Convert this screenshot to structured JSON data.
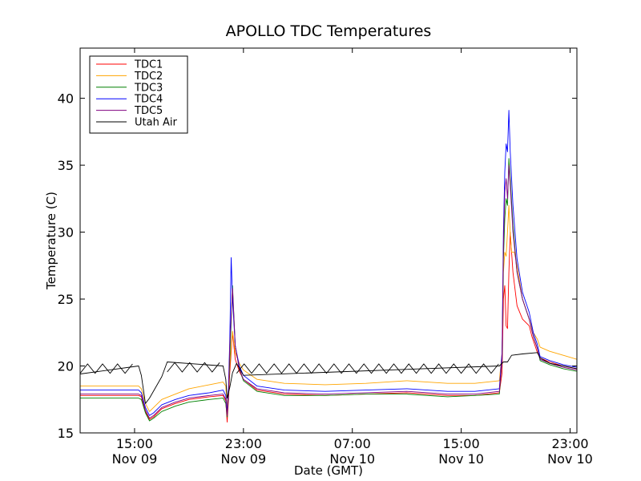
{
  "chart_data": {
    "type": "line",
    "title": "APOLLO TDC Temperatures",
    "xlabel": "Date (GMT)",
    "ylabel": "Temperature (C)",
    "xlim": [
      11.0,
      47.5
    ],
    "ylim": [
      15,
      43.75
    ],
    "x_unit": "hours since 00:00 Nov 09 (GMT)",
    "xticks": [
      {
        "value": 15,
        "line1": "15:00",
        "line2": "Nov 09"
      },
      {
        "value": 23,
        "line1": "23:00",
        "line2": "Nov 09"
      },
      {
        "value": 31,
        "line1": "07:00",
        "line2": "Nov 10"
      },
      {
        "value": 39,
        "line1": "15:00",
        "line2": "Nov 10"
      },
      {
        "value": 47,
        "line1": "23:00",
        "line2": "Nov 10"
      }
    ],
    "yticks": [
      15,
      20,
      25,
      30,
      35,
      40
    ],
    "legend_position": "top-left",
    "series": [
      {
        "name": "TDC1",
        "color": "#ff0000",
        "points": [
          [
            11.0,
            17.8
          ],
          [
            15.3,
            17.8
          ],
          [
            15.5,
            17.7
          ],
          [
            15.8,
            16.6
          ],
          [
            16.1,
            16.0
          ],
          [
            16.4,
            16.2
          ],
          [
            17.0,
            16.8
          ],
          [
            18.0,
            17.2
          ],
          [
            19.0,
            17.5
          ],
          [
            20.5,
            17.7
          ],
          [
            21.5,
            17.8
          ],
          [
            21.7,
            17.4
          ],
          [
            21.8,
            15.8
          ],
          [
            21.9,
            17.5
          ],
          [
            22.0,
            19.5
          ],
          [
            22.2,
            22.5
          ],
          [
            22.4,
            20.5
          ],
          [
            22.7,
            19.6
          ],
          [
            23.0,
            19.0
          ],
          [
            24.0,
            18.2
          ],
          [
            26.0,
            17.9
          ],
          [
            29.0,
            17.8
          ],
          [
            32.0,
            17.9
          ],
          [
            35.0,
            18.0
          ],
          [
            38.0,
            17.8
          ],
          [
            40.0,
            17.8
          ],
          [
            41.8,
            18.0
          ],
          [
            42.0,
            19.5
          ],
          [
            42.1,
            25.0
          ],
          [
            42.2,
            26.0
          ],
          [
            42.3,
            23.0
          ],
          [
            42.4,
            22.8
          ],
          [
            42.5,
            27.0
          ],
          [
            42.6,
            30.0
          ],
          [
            42.8,
            27.0
          ],
          [
            43.1,
            24.5
          ],
          [
            43.5,
            23.5
          ],
          [
            44.0,
            23.0
          ],
          [
            44.2,
            22.2
          ],
          [
            44.6,
            21.0
          ],
          [
            44.8,
            20.6
          ],
          [
            45.5,
            20.3
          ],
          [
            46.5,
            20.0
          ],
          [
            47.5,
            19.8
          ]
        ]
      },
      {
        "name": "TDC2",
        "color": "#ffa500",
        "points": [
          [
            11.0,
            18.5
          ],
          [
            15.3,
            18.5
          ],
          [
            15.5,
            18.3
          ],
          [
            15.8,
            17.2
          ],
          [
            16.1,
            16.6
          ],
          [
            16.4,
            16.9
          ],
          [
            17.0,
            17.5
          ],
          [
            18.0,
            17.9
          ],
          [
            19.0,
            18.3
          ],
          [
            20.5,
            18.6
          ],
          [
            21.5,
            18.8
          ],
          [
            21.7,
            18.5
          ],
          [
            21.8,
            16.8
          ],
          [
            21.9,
            18.2
          ],
          [
            22.0,
            20.0
          ],
          [
            22.2,
            22.6
          ],
          [
            22.4,
            21.0
          ],
          [
            22.7,
            20.2
          ],
          [
            23.0,
            19.7
          ],
          [
            24.0,
            19.0
          ],
          [
            26.0,
            18.7
          ],
          [
            29.0,
            18.6
          ],
          [
            32.0,
            18.7
          ],
          [
            35.0,
            18.9
          ],
          [
            38.0,
            18.7
          ],
          [
            40.0,
            18.7
          ],
          [
            41.8,
            18.9
          ],
          [
            42.0,
            21.0
          ],
          [
            42.1,
            27.0
          ],
          [
            42.2,
            28.5
          ],
          [
            42.3,
            28.2
          ],
          [
            42.4,
            30.0
          ],
          [
            42.5,
            32.0
          ],
          [
            42.6,
            30.0
          ],
          [
            42.7,
            28.5
          ],
          [
            42.9,
            28.5
          ],
          [
            43.1,
            27.5
          ],
          [
            43.5,
            25.0
          ],
          [
            44.0,
            23.5
          ],
          [
            44.3,
            22.5
          ],
          [
            44.6,
            22.0
          ],
          [
            44.8,
            21.4
          ],
          [
            45.5,
            21.1
          ],
          [
            46.5,
            20.8
          ],
          [
            47.5,
            20.5
          ]
        ]
      },
      {
        "name": "TDC3",
        "color": "#008000",
        "points": [
          [
            11.0,
            17.6
          ],
          [
            15.3,
            17.6
          ],
          [
            15.5,
            17.5
          ],
          [
            15.8,
            16.5
          ],
          [
            16.1,
            15.9
          ],
          [
            16.4,
            16.1
          ],
          [
            17.0,
            16.6
          ],
          [
            18.0,
            17.0
          ],
          [
            19.0,
            17.3
          ],
          [
            20.5,
            17.5
          ],
          [
            21.5,
            17.6
          ],
          [
            21.7,
            17.2
          ],
          [
            21.8,
            16.2
          ],
          [
            21.9,
            17.8
          ],
          [
            22.0,
            20.5
          ],
          [
            22.2,
            26.0
          ],
          [
            22.4,
            21.5
          ],
          [
            22.7,
            19.8
          ],
          [
            23.0,
            18.9
          ],
          [
            24.0,
            18.1
          ],
          [
            26.0,
            17.8
          ],
          [
            29.0,
            17.8
          ],
          [
            32.0,
            17.9
          ],
          [
            35.0,
            17.9
          ],
          [
            38.0,
            17.7
          ],
          [
            40.0,
            17.8
          ],
          [
            41.8,
            17.9
          ],
          [
            42.0,
            20.5
          ],
          [
            42.1,
            28.0
          ],
          [
            42.2,
            31.0
          ],
          [
            42.3,
            32.5
          ],
          [
            42.4,
            32.0
          ],
          [
            42.5,
            35.5
          ],
          [
            42.6,
            34.0
          ],
          [
            42.8,
            30.5
          ],
          [
            43.1,
            27.0
          ],
          [
            43.5,
            25.0
          ],
          [
            44.0,
            23.5
          ],
          [
            44.3,
            22.2
          ],
          [
            44.6,
            21.3
          ],
          [
            44.8,
            20.4
          ],
          [
            45.5,
            20.1
          ],
          [
            46.5,
            19.8
          ],
          [
            47.5,
            19.6
          ]
        ]
      },
      {
        "name": "TDC4",
        "color": "#0000ff",
        "points": [
          [
            11.0,
            18.2
          ],
          [
            15.3,
            18.2
          ],
          [
            15.5,
            18.0
          ],
          [
            15.8,
            16.9
          ],
          [
            16.1,
            16.3
          ],
          [
            16.4,
            16.5
          ],
          [
            17.0,
            17.1
          ],
          [
            18.0,
            17.5
          ],
          [
            19.0,
            17.8
          ],
          [
            20.5,
            18.0
          ],
          [
            21.5,
            18.2
          ],
          [
            21.7,
            17.8
          ],
          [
            21.8,
            16.5
          ],
          [
            21.9,
            18.5
          ],
          [
            22.0,
            22.0
          ],
          [
            22.1,
            28.1
          ],
          [
            22.2,
            25.0
          ],
          [
            22.4,
            21.5
          ],
          [
            22.7,
            20.0
          ],
          [
            23.0,
            19.3
          ],
          [
            24.0,
            18.5
          ],
          [
            26.0,
            18.2
          ],
          [
            29.0,
            18.1
          ],
          [
            32.0,
            18.2
          ],
          [
            35.0,
            18.3
          ],
          [
            38.0,
            18.1
          ],
          [
            40.0,
            18.1
          ],
          [
            41.8,
            18.3
          ],
          [
            42.0,
            21.0
          ],
          [
            42.1,
            30.0
          ],
          [
            42.2,
            34.5
          ],
          [
            42.3,
            36.6
          ],
          [
            42.4,
            36.0
          ],
          [
            42.5,
            39.1
          ],
          [
            42.6,
            36.0
          ],
          [
            42.8,
            32.0
          ],
          [
            43.1,
            28.0
          ],
          [
            43.5,
            25.5
          ],
          [
            44.0,
            24.0
          ],
          [
            44.3,
            22.5
          ],
          [
            44.6,
            21.6
          ],
          [
            44.8,
            20.7
          ],
          [
            45.5,
            20.4
          ],
          [
            46.5,
            20.1
          ],
          [
            47.5,
            19.9
          ]
        ]
      },
      {
        "name": "TDC5",
        "color": "#800080",
        "points": [
          [
            11.0,
            17.9
          ],
          [
            15.3,
            17.9
          ],
          [
            15.5,
            17.8
          ],
          [
            15.8,
            16.7
          ],
          [
            16.1,
            16.1
          ],
          [
            16.4,
            16.3
          ],
          [
            17.0,
            16.9
          ],
          [
            18.0,
            17.3
          ],
          [
            19.0,
            17.6
          ],
          [
            20.5,
            17.8
          ],
          [
            21.5,
            17.9
          ],
          [
            21.7,
            17.5
          ],
          [
            21.8,
            16.3
          ],
          [
            21.9,
            18.0
          ],
          [
            22.0,
            21.5
          ],
          [
            22.2,
            25.8
          ],
          [
            22.4,
            21.5
          ],
          [
            22.7,
            19.8
          ],
          [
            23.0,
            19.0
          ],
          [
            24.0,
            18.3
          ],
          [
            26.0,
            18.0
          ],
          [
            29.0,
            17.9
          ],
          [
            32.0,
            18.0
          ],
          [
            35.0,
            18.1
          ],
          [
            38.0,
            17.9
          ],
          [
            40.0,
            17.9
          ],
          [
            41.8,
            18.1
          ],
          [
            42.0,
            20.5
          ],
          [
            42.1,
            29.0
          ],
          [
            42.2,
            33.0
          ],
          [
            42.3,
            34.0
          ],
          [
            42.4,
            32.5
          ],
          [
            42.5,
            35.0
          ],
          [
            42.6,
            33.5
          ],
          [
            42.8,
            30.0
          ],
          [
            43.1,
            27.0
          ],
          [
            43.5,
            25.0
          ],
          [
            44.0,
            23.5
          ],
          [
            44.3,
            22.2
          ],
          [
            44.6,
            21.3
          ],
          [
            44.8,
            20.5
          ],
          [
            45.5,
            20.2
          ],
          [
            46.5,
            19.9
          ],
          [
            47.5,
            19.7
          ]
        ]
      },
      {
        "name": "Utah Air",
        "color": "#000000",
        "points": [
          [
            11.0,
            19.4
          ],
          [
            15.3,
            20.0
          ],
          [
            15.5,
            19.3
          ],
          [
            15.8,
            17.2
          ],
          [
            16.1,
            17.6
          ],
          [
            17.0,
            19.2
          ],
          [
            17.4,
            20.3
          ],
          [
            21.5,
            20.0
          ],
          [
            21.7,
            19.0
          ],
          [
            21.8,
            17.6
          ],
          [
            22.0,
            18.4
          ],
          [
            22.2,
            19.5
          ],
          [
            22.5,
            20.2
          ],
          [
            23.0,
            19.3
          ],
          [
            41.8,
            20.0
          ],
          [
            42.1,
            20.3
          ],
          [
            42.4,
            20.3
          ],
          [
            42.7,
            20.8
          ],
          [
            43.5,
            20.9
          ],
          [
            44.6,
            21.0
          ],
          [
            44.8,
            20.6
          ],
          [
            45.5,
            20.2
          ],
          [
            46.5,
            20.0
          ],
          [
            47.5,
            19.8
          ]
        ]
      }
    ]
  }
}
